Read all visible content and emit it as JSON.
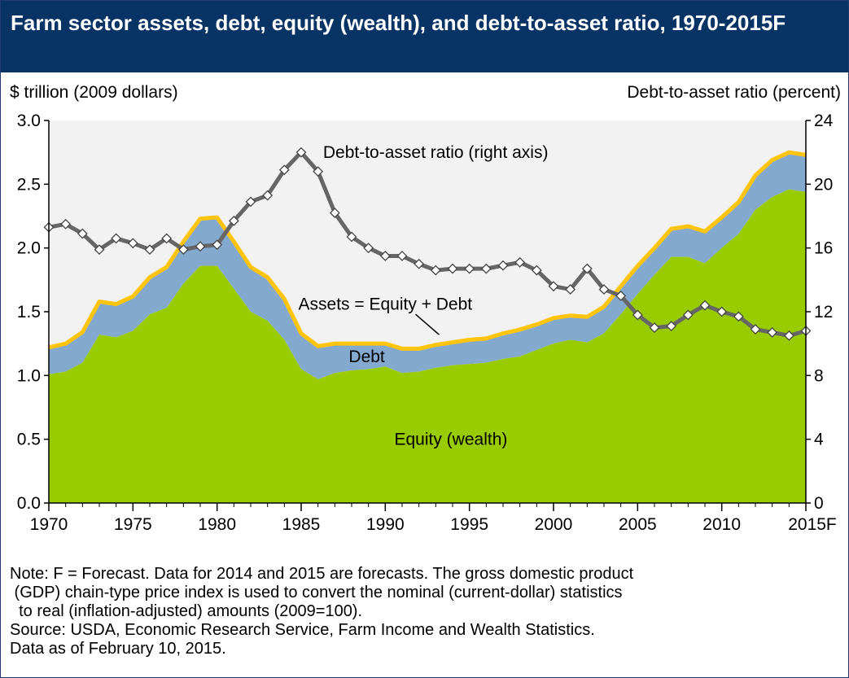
{
  "title": "Farm sector assets, debt, equity (wealth), and debt-to-asset ratio, 1970-2015F",
  "notes": [
    "Note: F = Forecast. Data for 2014 and 2015 are forecasts. The gross domestic product",
    " (GDP) chain-type price index is used to convert the nominal (current-dollar) statistics",
    "  to real (inflation-adjusted) amounts (2009=100).",
    "Source: USDA, Economic Research Service, Farm Income and Wealth Statistics.",
    "Data as of February 10, 2015."
  ],
  "colors": {
    "equity": "#99cc00",
    "debt": "#84a9cf",
    "assets_line": "#ffc40c",
    "ratio_line": "#666666",
    "plot_bg": "#f2f2f2",
    "title_bg": "#073365"
  },
  "chart_data": {
    "type": "area",
    "title": "Farm sector assets, debt, equity (wealth), and debt-to-asset ratio, 1970-2015F",
    "ylabel_left": "$ trillion (2009 dollars)",
    "ylabel_right": "Debt-to-asset ratio (percent)",
    "ylim_left": [
      0,
      3.0
    ],
    "ylim_right": [
      0,
      24
    ],
    "yticks_left": [
      "0.0",
      "0.5",
      "1.0",
      "1.5",
      "2.0",
      "2.5",
      "3.0"
    ],
    "yticks_right": [
      "0",
      "4",
      "8",
      "12",
      "16",
      "20",
      "24"
    ],
    "xlim": [
      1970,
      2015
    ],
    "xticks": [
      1970,
      1975,
      1980,
      1985,
      1990,
      1995,
      2000,
      2005,
      2010,
      2015
    ],
    "xtick_labels": [
      "1970",
      "1975",
      "1980",
      "1985",
      "1990",
      "1995",
      "2000",
      "2005",
      "2010",
      "2015F"
    ],
    "grid": false,
    "x": [
      1970,
      1971,
      1972,
      1973,
      1974,
      1975,
      1976,
      1977,
      1978,
      1979,
      1980,
      1981,
      1982,
      1983,
      1984,
      1985,
      1986,
      1987,
      1988,
      1989,
      1990,
      1991,
      1992,
      1993,
      1994,
      1995,
      1996,
      1997,
      1998,
      1999,
      2000,
      2001,
      2002,
      2003,
      2004,
      2005,
      2006,
      2007,
      2008,
      2009,
      2010,
      2011,
      2012,
      2013,
      2014,
      2015
    ],
    "series": [
      {
        "name": "Equity (wealth)",
        "axis": "left",
        "type": "area",
        "values": [
          1.01,
          1.03,
          1.1,
          1.32,
          1.3,
          1.35,
          1.48,
          1.53,
          1.72,
          1.86,
          1.86,
          1.68,
          1.5,
          1.43,
          1.28,
          1.05,
          0.97,
          1.02,
          1.04,
          1.05,
          1.07,
          1.02,
          1.03,
          1.06,
          1.08,
          1.09,
          1.1,
          1.13,
          1.15,
          1.2,
          1.25,
          1.28,
          1.26,
          1.33,
          1.48,
          1.64,
          1.79,
          1.93,
          1.93,
          1.88,
          2.0,
          2.11,
          2.3,
          2.4,
          2.46,
          2.44
        ]
      },
      {
        "name": "Debt",
        "axis": "left",
        "type": "area",
        "values": [
          0.21,
          0.22,
          0.24,
          0.26,
          0.26,
          0.27,
          0.29,
          0.32,
          0.33,
          0.37,
          0.38,
          0.37,
          0.35,
          0.34,
          0.32,
          0.28,
          0.26,
          0.23,
          0.21,
          0.2,
          0.18,
          0.19,
          0.18,
          0.18,
          0.18,
          0.19,
          0.19,
          0.2,
          0.21,
          0.2,
          0.2,
          0.19,
          0.2,
          0.21,
          0.22,
          0.22,
          0.21,
          0.22,
          0.24,
          0.25,
          0.24,
          0.25,
          0.27,
          0.29,
          0.29,
          0.29
        ]
      },
      {
        "name": "Assets = Equity + Debt",
        "axis": "left",
        "type": "line",
        "values": [
          1.22,
          1.25,
          1.34,
          1.58,
          1.56,
          1.62,
          1.77,
          1.85,
          2.05,
          2.23,
          2.24,
          2.05,
          1.85,
          1.77,
          1.6,
          1.33,
          1.23,
          1.25,
          1.25,
          1.25,
          1.25,
          1.21,
          1.21,
          1.24,
          1.26,
          1.28,
          1.29,
          1.33,
          1.36,
          1.4,
          1.45,
          1.47,
          1.46,
          1.54,
          1.7,
          1.86,
          2.0,
          2.15,
          2.17,
          2.13,
          2.24,
          2.36,
          2.57,
          2.69,
          2.75,
          2.73
        ]
      },
      {
        "name": "Debt-to-asset ratio (right axis)",
        "axis": "right",
        "type": "line",
        "values": [
          17.3,
          17.5,
          16.9,
          15.9,
          16.6,
          16.3,
          15.9,
          16.6,
          15.9,
          16.1,
          16.2,
          17.7,
          18.9,
          19.3,
          20.9,
          22.0,
          20.8,
          18.2,
          16.7,
          16.0,
          15.5,
          15.5,
          15.0,
          14.6,
          14.7,
          14.7,
          14.7,
          14.9,
          15.1,
          14.6,
          13.6,
          13.4,
          14.7,
          13.4,
          13.0,
          11.8,
          11.0,
          11.1,
          11.8,
          12.4,
          12.0,
          11.7,
          10.9,
          10.7,
          10.5,
          10.8
        ]
      }
    ],
    "annotations": [
      {
        "text": "Debt-to-asset ratio (right axis)",
        "x": 1986.3,
        "y_right": 22.0
      },
      {
        "text": "Assets = Equity + Debt",
        "x": 1990,
        "y": 1.56
      },
      {
        "text": "Debt",
        "x": 1988.9,
        "y": 1.15
      },
      {
        "text": "Equity (wealth)",
        "x": 1993.9,
        "y": 0.5
      }
    ]
  }
}
